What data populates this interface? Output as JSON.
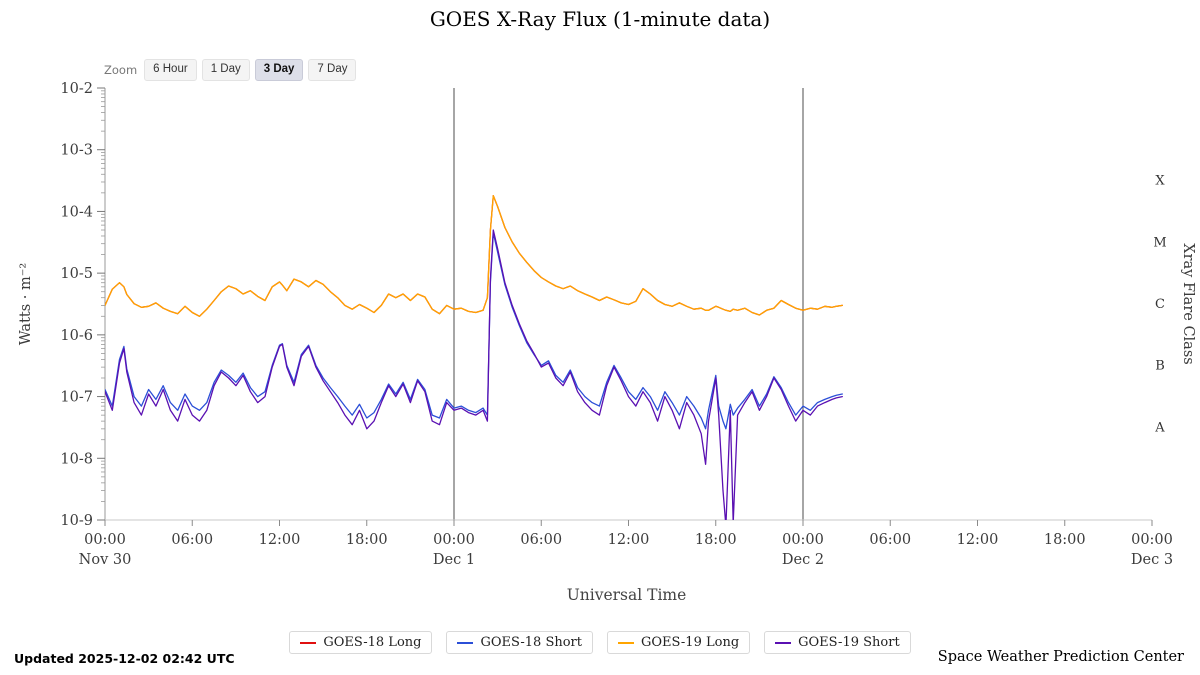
{
  "title": "GOES X-Ray Flux (1-minute data)",
  "zoom": {
    "label": "Zoom",
    "options": [
      {
        "label": "6 Hour",
        "active": false
      },
      {
        "label": "1 Day",
        "active": false
      },
      {
        "label": "3 Day",
        "active": true
      },
      {
        "label": "7 Day",
        "active": false
      }
    ]
  },
  "footer": {
    "updated": "Updated 2025-12-02 02:42 UTC",
    "credit": "Space Weather Prediction Center"
  },
  "chart_data": {
    "type": "line",
    "title": "GOES X-Ray Flux (1-minute data)",
    "xlabel": "Universal Time",
    "ylabel": "Watts · m⁻²",
    "y2label": "Xray Flare Class",
    "y_scale": "log",
    "y_log_top": -2,
    "y_log_bottom": -9,
    "x_range": [
      0,
      72
    ],
    "x_tick_step_hours": 6,
    "x_hour_labels": [
      "00:00",
      "06:00",
      "12:00",
      "18:00"
    ],
    "day_labels": [
      {
        "hour": 0,
        "label": "Nov 30"
      },
      {
        "hour": 24,
        "label": "Dec 1"
      },
      {
        "hour": 48,
        "label": "Dec 2"
      },
      {
        "hour": 72,
        "label": "Dec 3"
      }
    ],
    "day_gridline_hours": [
      24,
      48
    ],
    "y_ticks": [
      {
        "label": "10-2",
        "exp": -2
      },
      {
        "label": "10-3",
        "exp": -3
      },
      {
        "label": "10-4",
        "exp": -4
      },
      {
        "label": "10-5",
        "exp": -5
      },
      {
        "label": "10-6",
        "exp": -6
      },
      {
        "label": "10-7",
        "exp": -7
      },
      {
        "label": "10-8",
        "exp": -8
      },
      {
        "label": "10-9",
        "exp": -9
      }
    ],
    "flare_class_labels": [
      {
        "label": "X",
        "log10_mid": -3.5
      },
      {
        "label": "M",
        "log10_mid": -4.5
      },
      {
        "label": "C",
        "log10_mid": -5.5
      },
      {
        "label": "B",
        "log10_mid": -6.5
      },
      {
        "label": "A",
        "log10_mid": -7.5
      }
    ],
    "x": [
      0,
      0.5,
      1,
      1.3,
      1.5,
      2,
      2.5,
      3,
      3.5,
      4,
      4.5,
      5,
      5.5,
      6,
      6.5,
      7,
      7.5,
      8,
      8.5,
      9,
      9.5,
      10,
      10.5,
      11,
      11.5,
      12,
      12.2,
      12.5,
      13,
      13.5,
      14,
      14.5,
      15,
      15.5,
      16,
      16.5,
      17,
      17.5,
      18,
      18.5,
      19,
      19.5,
      20,
      20.5,
      21,
      21.5,
      22,
      22.5,
      23,
      23.5,
      24,
      24.5,
      25,
      25.5,
      26,
      26.3,
      26.5,
      26.7,
      27,
      27.5,
      28,
      28.5,
      29,
      29.5,
      30,
      30.5,
      31,
      31.5,
      32,
      32.5,
      33,
      33.5,
      34,
      34.5,
      35,
      35.5,
      36,
      36.5,
      37,
      37.5,
      38,
      38.5,
      39,
      39.5,
      40,
      40.5,
      41,
      41.3,
      41.5,
      42,
      42.2,
      42.5,
      42.7,
      43,
      43.2,
      43.5,
      44,
      44.5,
      45,
      45.5,
      46,
      46.5,
      47,
      47.5,
      48,
      48.5,
      49,
      49.5,
      50,
      50.3,
      50.7
    ],
    "series": [
      {
        "name": "GOES-18 Long",
        "color": "#e01010",
        "values": [
          3e-06,
          5.5e-06,
          7e-06,
          6e-06,
          4.5e-06,
          3.2e-06,
          2.8e-06,
          2.9e-06,
          3.3e-06,
          2.7e-06,
          2.4e-06,
          2.2e-06,
          2.9e-06,
          2.3e-06,
          2e-06,
          2.6e-06,
          3.6e-06,
          5e-06,
          6.2e-06,
          5.6e-06,
          4.6e-06,
          5.2e-06,
          4.2e-06,
          3.6e-06,
          6e-06,
          7.2e-06,
          6.4e-06,
          5.2e-06,
          8e-06,
          7.2e-06,
          6e-06,
          7.6e-06,
          6.6e-06,
          5e-06,
          4e-06,
          3e-06,
          2.6e-06,
          3.1e-06,
          2.7e-06,
          2.3e-06,
          3e-06,
          4.6e-06,
          4e-06,
          4.6e-06,
          3.6e-06,
          4.6e-06,
          4.1e-06,
          2.6e-06,
          2.2e-06,
          3e-06,
          2.6e-06,
          2.7e-06,
          2.4e-06,
          2.3e-06,
          2.5e-06,
          4e-06,
          5e-05,
          0.00018,
          0.00012,
          5.5e-05,
          3.2e-05,
          2.1e-05,
          1.5e-05,
          1.1e-05,
          8.5e-06,
          7.2e-06,
          6.2e-06,
          5.6e-06,
          6.2e-06,
          5.2e-06,
          4.6e-06,
          4.1e-06,
          3.6e-06,
          4.1e-06,
          3.7e-06,
          3.3e-06,
          3.1e-06,
          3.5e-06,
          5.6e-06,
          4.6e-06,
          3.6e-06,
          3.1e-06,
          2.9e-06,
          3.3e-06,
          2.9e-06,
          2.6e-06,
          2.7e-06,
          2.5e-06,
          2.5e-06,
          2.9e-06,
          2.8e-06,
          2.6e-06,
          2.5e-06,
          2.4e-06,
          2.6e-06,
          2.5e-06,
          2.7e-06,
          2.3e-06,
          2.1e-06,
          2.5e-06,
          2.7e-06,
          3.6e-06,
          3.1e-06,
          2.7e-06,
          2.5e-06,
          2.7e-06,
          2.6e-06,
          2.9e-06,
          2.8e-06,
          2.9e-06,
          3e-06
        ]
      },
      {
        "name": "GOES-18 Short",
        "color": "#2b4fd7",
        "values": [
          1.3e-07,
          7e-08,
          4e-07,
          6.5e-07,
          2.8e-07,
          1e-07,
          7e-08,
          1.3e-07,
          9e-08,
          1.5e-07,
          8e-08,
          6e-08,
          1.1e-07,
          7e-08,
          6e-08,
          8e-08,
          1.7e-07,
          2.7e-07,
          2.2e-07,
          1.7e-07,
          2.4e-07,
          1.4e-07,
          1e-07,
          1.2e-07,
          3.2e-07,
          6.8e-07,
          7.2e-07,
          3.2e-07,
          1.7e-07,
          4.8e-07,
          6.8e-07,
          3.2e-07,
          2e-07,
          1.4e-07,
          1e-07,
          7e-08,
          5e-08,
          7.5e-08,
          4.5e-08,
          5.5e-08,
          9e-08,
          1.6e-07,
          1.1e-07,
          1.7e-07,
          9e-08,
          1.9e-07,
          1.3e-07,
          5e-08,
          4.5e-08,
          9e-08,
          6.5e-08,
          7e-08,
          6e-08,
          5.5e-08,
          6.5e-08,
          5e-08,
          7e-06,
          4.5e-05,
          2.2e-05,
          6.5e-06,
          2.8e-06,
          1.4e-06,
          7.5e-07,
          4.8e-07,
          3.2e-07,
          3.8e-07,
          2.2e-07,
          1.7e-07,
          2.7e-07,
          1.4e-07,
          1e-07,
          8e-08,
          7e-08,
          1.7e-07,
          3.2e-07,
          2e-07,
          1.2e-07,
          9e-08,
          1.4e-07,
          1e-07,
          6e-08,
          1.2e-07,
          8e-08,
          5e-08,
          1e-07,
          7e-08,
          4.5e-08,
          3e-08,
          6e-08,
          2.2e-07,
          7e-08,
          4e-08,
          3e-08,
          7.5e-08,
          5e-08,
          6.5e-08,
          9e-08,
          1.3e-07,
          7e-08,
          1.1e-07,
          2.1e-07,
          1.4e-07,
          8e-08,
          5e-08,
          7e-08,
          6e-08,
          8e-08,
          9e-08,
          1e-07,
          1.05e-07,
          1.1e-07
        ]
      },
      {
        "name": "GOES-19 Long",
        "color": "#ffa500",
        "values": [
          3e-06,
          5.5e-06,
          7e-06,
          6e-06,
          4.5e-06,
          3.2e-06,
          2.8e-06,
          2.9e-06,
          3.3e-06,
          2.7e-06,
          2.4e-06,
          2.2e-06,
          2.9e-06,
          2.3e-06,
          2e-06,
          2.6e-06,
          3.6e-06,
          5e-06,
          6.2e-06,
          5.6e-06,
          4.6e-06,
          5.2e-06,
          4.2e-06,
          3.6e-06,
          6e-06,
          7.2e-06,
          6.4e-06,
          5.2e-06,
          8e-06,
          7.2e-06,
          6e-06,
          7.6e-06,
          6.6e-06,
          5e-06,
          4e-06,
          3e-06,
          2.6e-06,
          3.1e-06,
          2.7e-06,
          2.3e-06,
          3e-06,
          4.6e-06,
          4e-06,
          4.6e-06,
          3.6e-06,
          4.6e-06,
          4.1e-06,
          2.6e-06,
          2.2e-06,
          3e-06,
          2.6e-06,
          2.7e-06,
          2.4e-06,
          2.3e-06,
          2.5e-06,
          4e-06,
          5e-05,
          0.00018,
          0.00012,
          5.5e-05,
          3.2e-05,
          2.1e-05,
          1.5e-05,
          1.1e-05,
          8.5e-06,
          7.2e-06,
          6.2e-06,
          5.6e-06,
          6.2e-06,
          5.2e-06,
          4.6e-06,
          4.1e-06,
          3.6e-06,
          4.1e-06,
          3.7e-06,
          3.3e-06,
          3.1e-06,
          3.5e-06,
          5.6e-06,
          4.6e-06,
          3.6e-06,
          3.1e-06,
          2.9e-06,
          3.3e-06,
          2.9e-06,
          2.6e-06,
          2.7e-06,
          2.5e-06,
          2.5e-06,
          2.9e-06,
          2.8e-06,
          2.6e-06,
          2.5e-06,
          2.4e-06,
          2.6e-06,
          2.5e-06,
          2.7e-06,
          2.3e-06,
          2.1e-06,
          2.5e-06,
          2.7e-06,
          3.6e-06,
          3.1e-06,
          2.7e-06,
          2.5e-06,
          2.7e-06,
          2.6e-06,
          2.9e-06,
          2.8e-06,
          2.9e-06,
          3e-06
        ]
      },
      {
        "name": "GOES-19 Short",
        "color": "#5a10b2",
        "values": [
          1.2e-07,
          6e-08,
          3.5e-07,
          6e-07,
          2.5e-07,
          8e-08,
          5e-08,
          1.1e-07,
          7e-08,
          1.3e-07,
          6e-08,
          4e-08,
          9e-08,
          5e-08,
          4e-08,
          6e-08,
          1.5e-07,
          2.5e-07,
          2e-07,
          1.5e-07,
          2.2e-07,
          1.2e-07,
          8e-08,
          1e-07,
          3e-07,
          6.5e-07,
          7e-07,
          3e-07,
          1.5e-07,
          4.5e-07,
          6.5e-07,
          3e-07,
          1.8e-07,
          1.2e-07,
          8e-08,
          5e-08,
          3.5e-08,
          6e-08,
          3e-08,
          4e-08,
          8e-08,
          1.5e-07,
          1e-07,
          1.6e-07,
          8e-08,
          1.8e-07,
          1.2e-07,
          4e-08,
          3.5e-08,
          8e-08,
          6e-08,
          6.5e-08,
          5.5e-08,
          5e-08,
          6e-08,
          4e-08,
          8e-06,
          5e-05,
          2.5e-05,
          7e-06,
          3e-06,
          1.5e-06,
          8e-07,
          5e-07,
          3e-07,
          3.5e-07,
          2e-07,
          1.5e-07,
          2.5e-07,
          1.2e-07,
          8e-08,
          6e-08,
          5e-08,
          1.5e-07,
          3e-07,
          1.8e-07,
          1e-07,
          7e-08,
          1.2e-07,
          8e-08,
          4e-08,
          1e-07,
          6e-08,
          3e-08,
          8e-08,
          5e-08,
          2.5e-08,
          8e-09,
          4e-08,
          2e-07,
          5e-08,
          3e-09,
          8e-10,
          6e-08,
          9e-10,
          5e-08,
          8e-08,
          1.2e-07,
          6e-08,
          1e-07,
          2e-07,
          1.3e-07,
          7e-08,
          4e-08,
          6e-08,
          5e-08,
          7e-08,
          8e-08,
          9e-08,
          9.5e-08,
          1e-07
        ]
      }
    ],
    "legend": [
      "GOES-18 Long",
      "GOES-18 Short",
      "GOES-19 Long",
      "GOES-19 Short"
    ]
  }
}
